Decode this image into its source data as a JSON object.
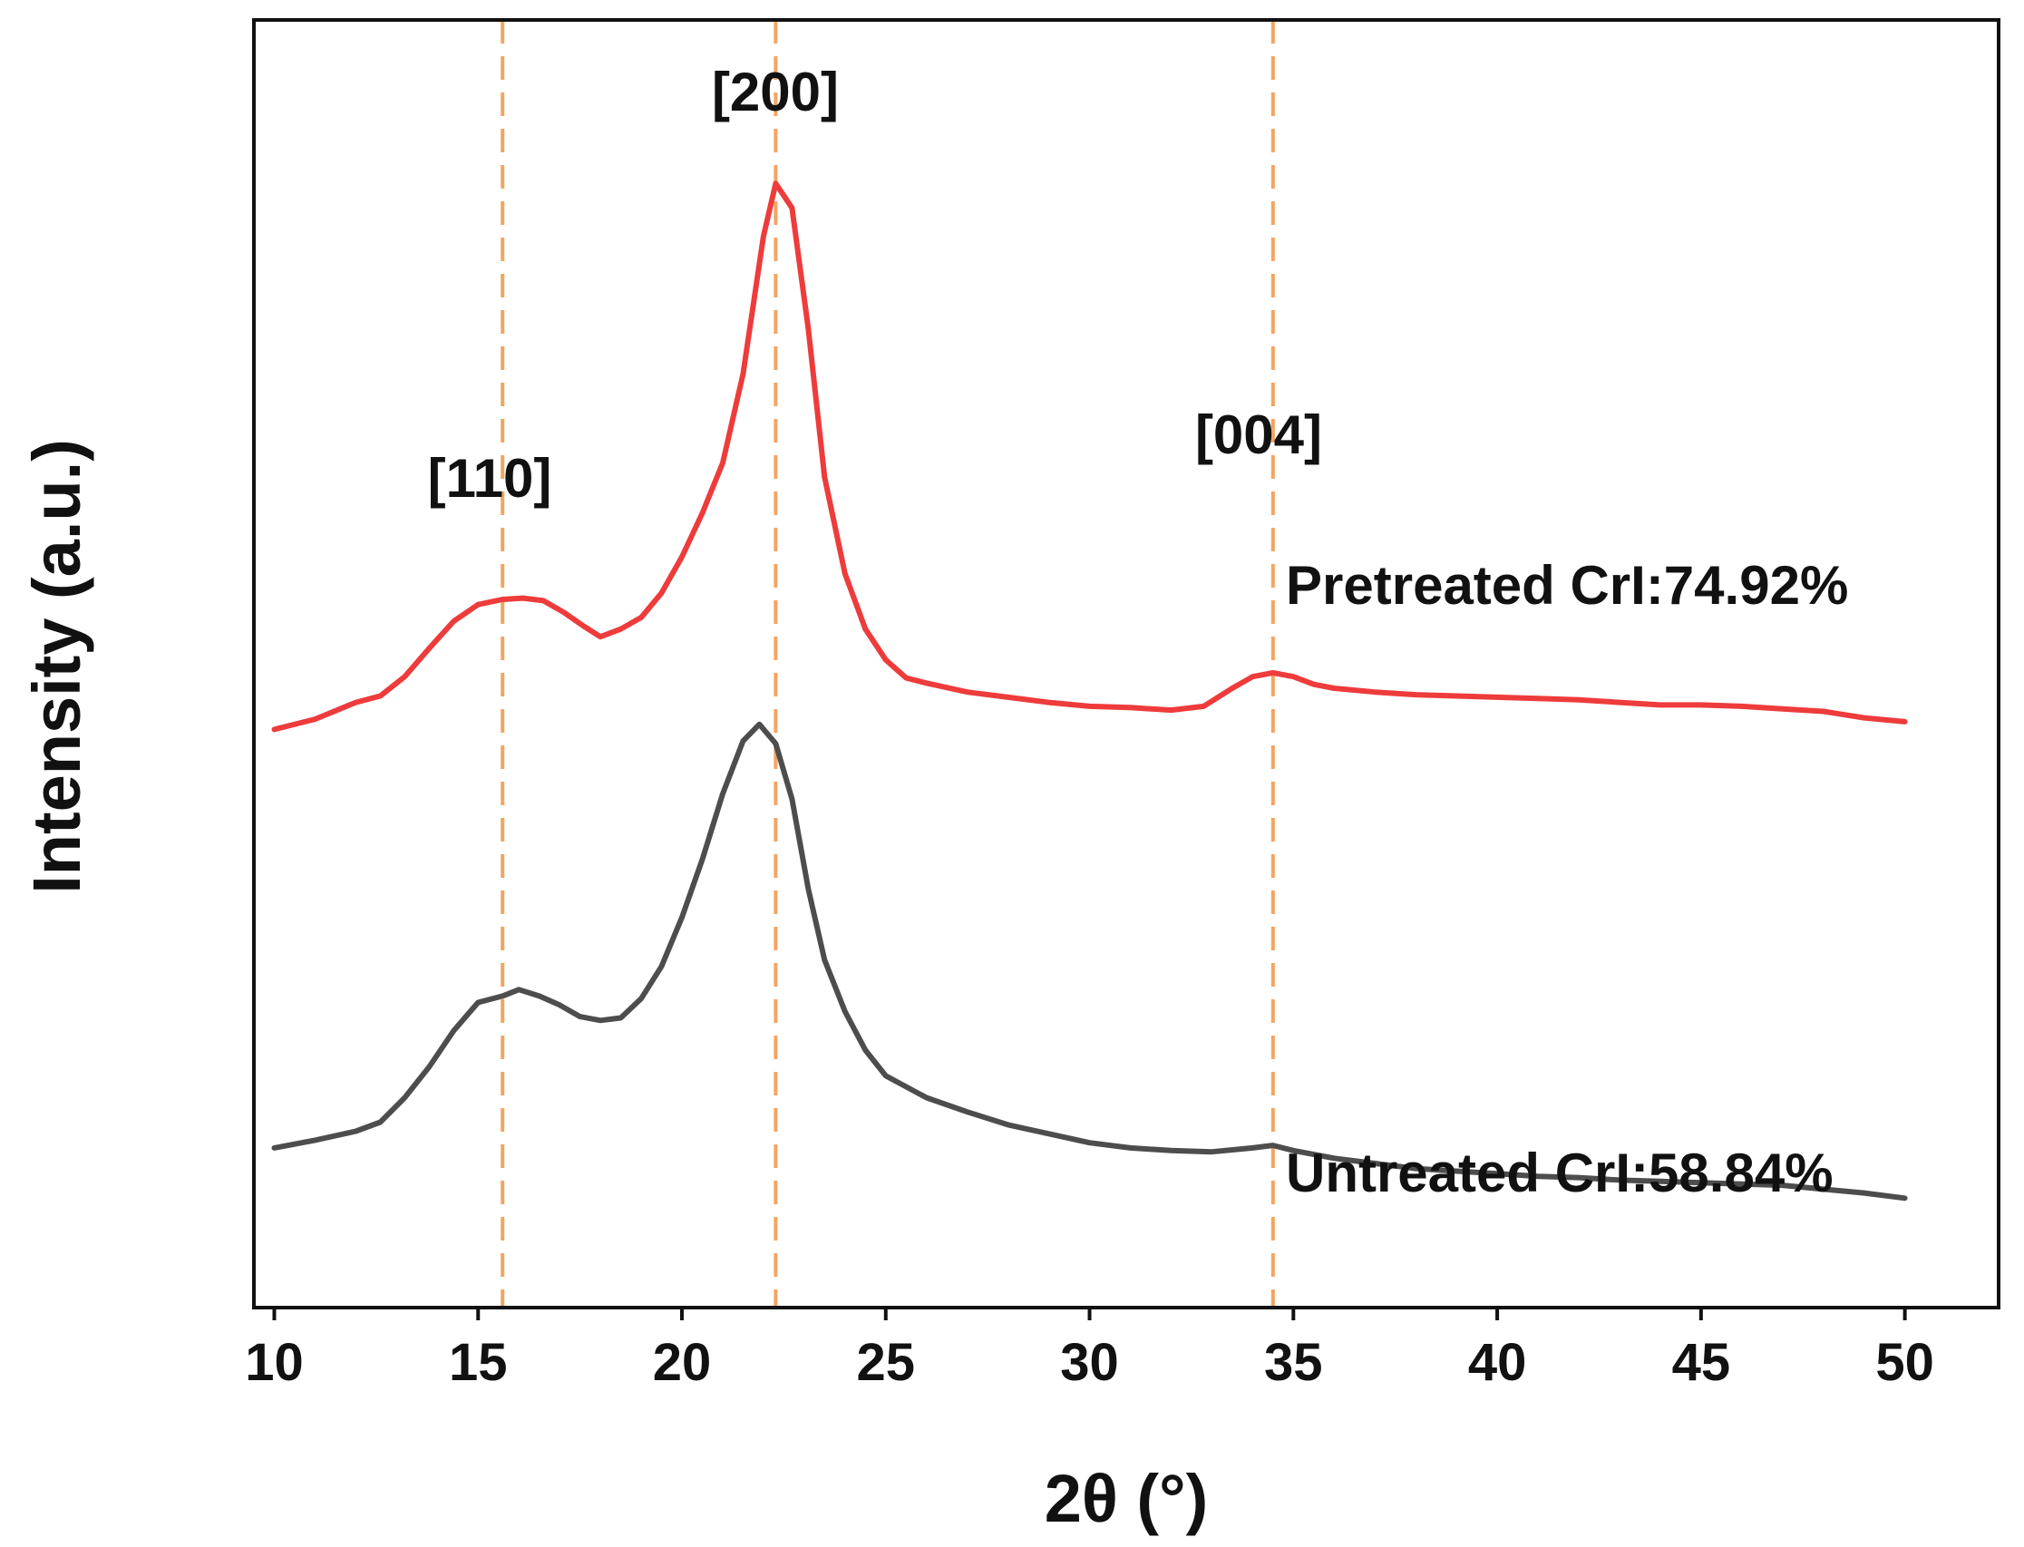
{
  "chart_data": {
    "type": "line",
    "title": "",
    "xlabel": "2θ (°)",
    "ylabel": "Intensity (a.u.)",
    "xlim": [
      9.5,
      52.3
    ],
    "ylim": [
      0,
      1
    ],
    "xticks": [
      10,
      15,
      20,
      25,
      30,
      35,
      40,
      45,
      50
    ],
    "yticks_shown": false,
    "grid": false,
    "reference_lines": [
      {
        "name": "110",
        "x": 15.6,
        "label": "[110]",
        "color": "#F4A460"
      },
      {
        "name": "200",
        "x": 22.3,
        "label": "[200]",
        "color": "#F4A460"
      },
      {
        "name": "004",
        "x": 34.5,
        "label": "[004]",
        "color": "#F4A460"
      }
    ],
    "series": [
      {
        "name": "pretreated",
        "label": "Pretreated CrI:74.92%",
        "color": "#EE3B3B",
        "x": [
          10,
          11,
          12,
          12.6,
          13.2,
          13.8,
          14.4,
          15,
          15.6,
          16.1,
          16.6,
          17.1,
          17.6,
          18,
          18.5,
          19,
          19.5,
          20,
          20.5,
          21,
          21.5,
          22,
          22.3,
          22.7,
          23.1,
          23.5,
          24,
          24.5,
          25,
          25.5,
          26,
          27,
          28,
          29,
          30,
          31,
          32,
          32.8,
          33.5,
          34,
          34.5,
          35,
          35.5,
          36,
          37,
          38,
          39,
          40,
          41,
          42,
          43,
          44,
          45,
          46,
          47,
          48,
          49,
          50
        ],
        "y": [
          0.449,
          0.457,
          0.47,
          0.475,
          0.49,
          0.512,
          0.533,
          0.546,
          0.55,
          0.551,
          0.549,
          0.54,
          0.529,
          0.521,
          0.527,
          0.536,
          0.555,
          0.583,
          0.617,
          0.656,
          0.725,
          0.832,
          0.873,
          0.854,
          0.76,
          0.645,
          0.57,
          0.527,
          0.503,
          0.489,
          0.485,
          0.478,
          0.474,
          0.47,
          0.467,
          0.466,
          0.464,
          0.467,
          0.481,
          0.49,
          0.493,
          0.49,
          0.484,
          0.481,
          0.478,
          0.476,
          0.475,
          0.474,
          0.473,
          0.472,
          0.47,
          0.468,
          0.468,
          0.467,
          0.465,
          0.463,
          0.458,
          0.455
        ]
      },
      {
        "name": "untreated",
        "label": "Untreated CrI:58.84%",
        "color": "#4D4D4D",
        "x": [
          10,
          11,
          12,
          12.6,
          13.2,
          13.8,
          14.4,
          15,
          15.6,
          16,
          16.5,
          17,
          17.5,
          18,
          18.5,
          19,
          19.5,
          20,
          20.5,
          21,
          21.5,
          21.9,
          22.3,
          22.7,
          23.1,
          23.5,
          24,
          24.5,
          25,
          26,
          27,
          28,
          29,
          30,
          31,
          32,
          33,
          34,
          34.5,
          35,
          36,
          37,
          38,
          39,
          40,
          41,
          42,
          43,
          44,
          45,
          46,
          47,
          48,
          49,
          50
        ],
        "y": [
          0.124,
          0.13,
          0.137,
          0.144,
          0.163,
          0.187,
          0.215,
          0.237,
          0.242,
          0.247,
          0.242,
          0.235,
          0.226,
          0.223,
          0.225,
          0.24,
          0.265,
          0.303,
          0.348,
          0.399,
          0.44,
          0.453,
          0.438,
          0.395,
          0.325,
          0.27,
          0.23,
          0.2,
          0.18,
          0.163,
          0.152,
          0.142,
          0.135,
          0.128,
          0.124,
          0.122,
          0.121,
          0.124,
          0.126,
          0.122,
          0.116,
          0.112,
          0.108,
          0.106,
          0.104,
          0.102,
          0.101,
          0.099,
          0.098,
          0.097,
          0.096,
          0.095,
          0.092,
          0.089,
          0.085
        ]
      }
    ]
  },
  "colors": {
    "axis": "#111111",
    "reference_line": "#F4A460"
  }
}
